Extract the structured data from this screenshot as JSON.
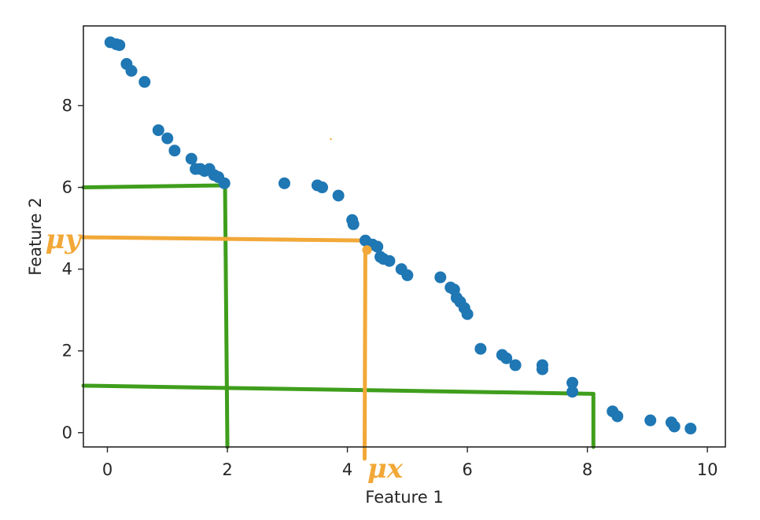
{
  "chart_data": {
    "type": "scatter",
    "xlabel": "Feature 1",
    "ylabel": "Feature 2",
    "xlim": [
      -0.4,
      10.3
    ],
    "ylim": [
      -0.35,
      9.95
    ],
    "xticks": [
      0,
      2,
      4,
      6,
      8,
      10
    ],
    "yticks": [
      0,
      2,
      4,
      6,
      8
    ],
    "grid": false,
    "colors": {
      "points": "#1f77b4",
      "green_lines": "#3f9e1c",
      "orange_lines": "#f2a838"
    },
    "series": [
      {
        "x": [
          0.05,
          0.15,
          0.2,
          0.32,
          0.4,
          0.62,
          0.85,
          1.0,
          1.12,
          1.4,
          1.47,
          1.55,
          1.62,
          1.7,
          1.78,
          1.85,
          1.95,
          2.95,
          3.5,
          3.58,
          3.85,
          4.08,
          4.1,
          4.3,
          4.42,
          4.5,
          4.55,
          4.6,
          4.7,
          4.9,
          5.0,
          5.55,
          5.72,
          5.78,
          5.82,
          5.88,
          5.95,
          6.0,
          6.22,
          6.58,
          6.65,
          6.8,
          7.25,
          7.25,
          7.75,
          7.75,
          8.42,
          8.5,
          9.05,
          9.4,
          9.45,
          9.72
        ],
        "y": [
          9.55,
          9.5,
          9.48,
          9.02,
          8.85,
          8.58,
          7.4,
          7.2,
          6.9,
          6.7,
          6.45,
          6.45,
          6.4,
          6.45,
          6.3,
          6.25,
          6.1,
          6.1,
          6.05,
          6.0,
          5.8,
          5.2,
          5.1,
          4.7,
          4.6,
          4.55,
          4.3,
          4.25,
          4.2,
          4.0,
          3.85,
          3.8,
          3.55,
          3.5,
          3.3,
          3.2,
          3.05,
          2.9,
          2.05,
          1.9,
          1.82,
          1.65,
          1.65,
          1.55,
          1.22,
          1.0,
          0.52,
          0.4,
          0.3,
          0.25,
          0.15,
          0.1
        ]
      }
    ],
    "annotations": {
      "mu_x_label": "μx",
      "mu_y_label": "μy",
      "green_vertical_1": {
        "x": 2.0,
        "from_y": 6.05
      },
      "green_horizontal_1": {
        "y": 6.0,
        "to_x": 1.95
      },
      "green_horizontal_2": {
        "y_start": 1.15,
        "y_end": 0.95,
        "to_x": 8.1
      },
      "green_vertical_2": {
        "x": 8.1,
        "from_y": 0.95
      },
      "orange_vertical": {
        "x": 4.3,
        "from_y": 4.7
      },
      "orange_horizontal": {
        "y": 4.78,
        "to_x": 4.3
      }
    }
  }
}
